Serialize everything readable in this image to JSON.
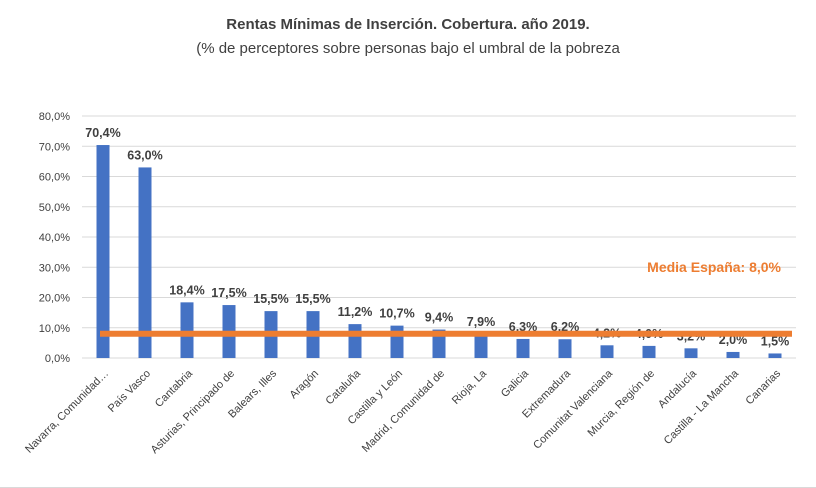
{
  "colors": {
    "bar": "#4472C4",
    "media_line": "#ED7D31",
    "grid": "#d9d9d9",
    "text": "#404040"
  },
  "chart_data": {
    "type": "bar",
    "title": "Rentas Mínimas de Inserción. Cobertura. año 2019.",
    "subtitle": "(% de perceptores sobre personas bajo el umbral de la pobreza",
    "categories": [
      "Navarra, Comunidad…",
      "País Vasco",
      "Cantabria",
      "Asturias, Principado de",
      "Balears, Illes",
      "Aragón",
      "Cataluña",
      "Castilla y León",
      "Madrid, Comunidad de",
      "Rioja, La",
      "Galicia",
      "Extremadura",
      "Comunitat Valenciana",
      "Murcia, Región de",
      "Andalucía",
      "Castilla - La Mancha",
      "Canarias"
    ],
    "values": [
      70.4,
      63.0,
      18.4,
      17.5,
      15.5,
      15.5,
      11.2,
      10.7,
      9.4,
      7.9,
      6.3,
      6.2,
      4.2,
      4.0,
      3.2,
      2.0,
      1.5
    ],
    "data_labels": [
      "70,4%",
      "63,0%",
      "18,4%",
      "17,5%",
      "15,5%",
      "15,5%",
      "11,2%",
      "10,7%",
      "9,4%",
      "7,9%",
      "6,3%",
      "6,2%",
      "4,2%",
      "4,0%",
      "3,2%",
      "2,0%",
      "1,5%"
    ],
    "y_ticks": [
      0,
      10,
      20,
      30,
      40,
      50,
      60,
      70,
      80
    ],
    "y_tick_labels": [
      "0,0%",
      "10,0%",
      "20,0%",
      "30,0%",
      "40,0%",
      "50,0%",
      "60,0%",
      "70,0%",
      "80,0%"
    ],
    "ylim": [
      0,
      80
    ],
    "grid": true,
    "reference_line": {
      "value": 8.0,
      "label": "Media España: 8,0%"
    }
  }
}
